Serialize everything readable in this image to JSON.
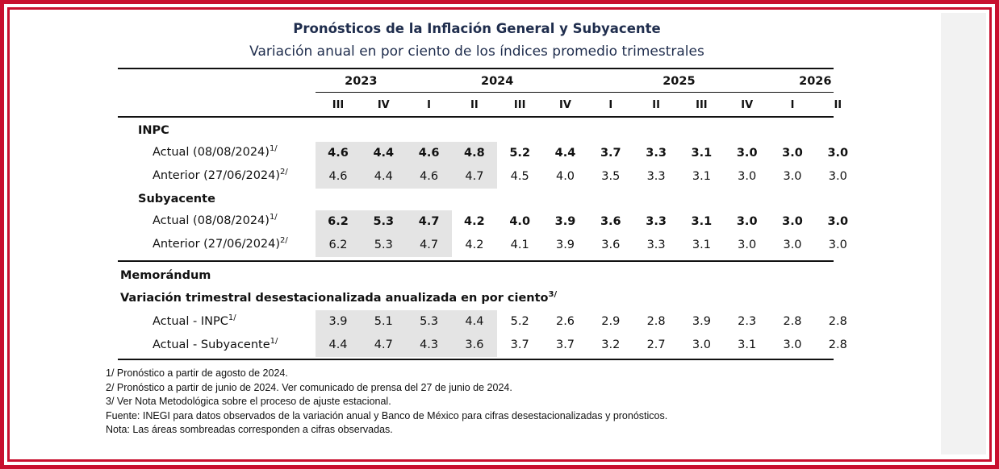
{
  "title": "Pronósticos de la Inflación General y Subyacente",
  "subtitle": "Variación anual en por ciento de los índices promedio trimestrales",
  "years": [
    {
      "label": "2023",
      "span": 2
    },
    {
      "label": "2024",
      "span": 4
    },
    {
      "label": "2025",
      "span": 4
    },
    {
      "label": "2026",
      "span": 2
    }
  ],
  "quarters": [
    "III",
    "IV",
    "I",
    "II",
    "III",
    "IV",
    "I",
    "II",
    "III",
    "IV",
    "I",
    "II"
  ],
  "sections": [
    {
      "name": "INPC",
      "rows": [
        {
          "label": "Actual (08/08/2024)",
          "sup": "1/",
          "bold": true,
          "values": [
            "4.6",
            "4.4",
            "4.6",
            "4.8",
            "5.2",
            "4.4",
            "3.7",
            "3.3",
            "3.1",
            "3.0",
            "3.0",
            "3.0"
          ]
        },
        {
          "label": "Anterior (27/06/2024)",
          "sup": "2/",
          "bold": false,
          "values": [
            "4.6",
            "4.4",
            "4.6",
            "4.7",
            "4.5",
            "4.0",
            "3.5",
            "3.3",
            "3.1",
            "3.0",
            "3.0",
            "3.0"
          ]
        }
      ]
    },
    {
      "name": "Subyacente",
      "rows": [
        {
          "label": "Actual (08/08/2024)",
          "sup": "1/",
          "bold": true,
          "values": [
            "6.2",
            "5.3",
            "4.7",
            "4.2",
            "4.0",
            "3.9",
            "3.6",
            "3.3",
            "3.1",
            "3.0",
            "3.0",
            "3.0"
          ]
        },
        {
          "label": "Anterior (27/06/2024)",
          "sup": "2/",
          "bold": false,
          "values": [
            "6.2",
            "5.3",
            "4.7",
            "4.2",
            "4.1",
            "3.9",
            "3.6",
            "3.3",
            "3.1",
            "3.0",
            "3.0",
            "3.0"
          ]
        }
      ]
    }
  ],
  "memo": {
    "title": "Memorándum",
    "subtitle": "Variación trimestral desestacionalizada anualizada en por ciento",
    "subtitle_sup": "3/",
    "rows": [
      {
        "label": "Actual - INPC",
        "sup": "1/",
        "bold": false,
        "values": [
          "3.9",
          "5.1",
          "5.3",
          "4.4",
          "5.2",
          "2.6",
          "2.9",
          "2.8",
          "3.9",
          "2.3",
          "2.8",
          "2.8"
        ]
      },
      {
        "label": "Actual - Subyacente",
        "sup": "1/",
        "bold": false,
        "values": [
          "4.4",
          "4.7",
          "4.3",
          "3.6",
          "3.7",
          "3.7",
          "3.2",
          "2.7",
          "3.0",
          "3.1",
          "3.0",
          "2.8"
        ]
      }
    ]
  },
  "shaded_quarters": {
    "INPC": 4,
    "Subyacente": 3,
    "memo": 4
  },
  "notes": [
    "1/ Pronóstico a partir de agosto de 2024.",
    "2/ Pronóstico a partir de junio de 2024. Ver comunicado de prensa del 27 de junio de 2024.",
    "3/ Ver Nota Metodológica sobre el proceso de ajuste estacional.",
    "Fuente: INEGI para datos observados de la variación anual y Banco de México para cifras desestacionalizadas y pronósticos.",
    "Nota: Las áreas sombreadas corresponden a cifras observadas."
  ],
  "colors": {
    "frame": "#c8102e",
    "title": "#1f2d4d",
    "shade": "#e4e4e4"
  }
}
